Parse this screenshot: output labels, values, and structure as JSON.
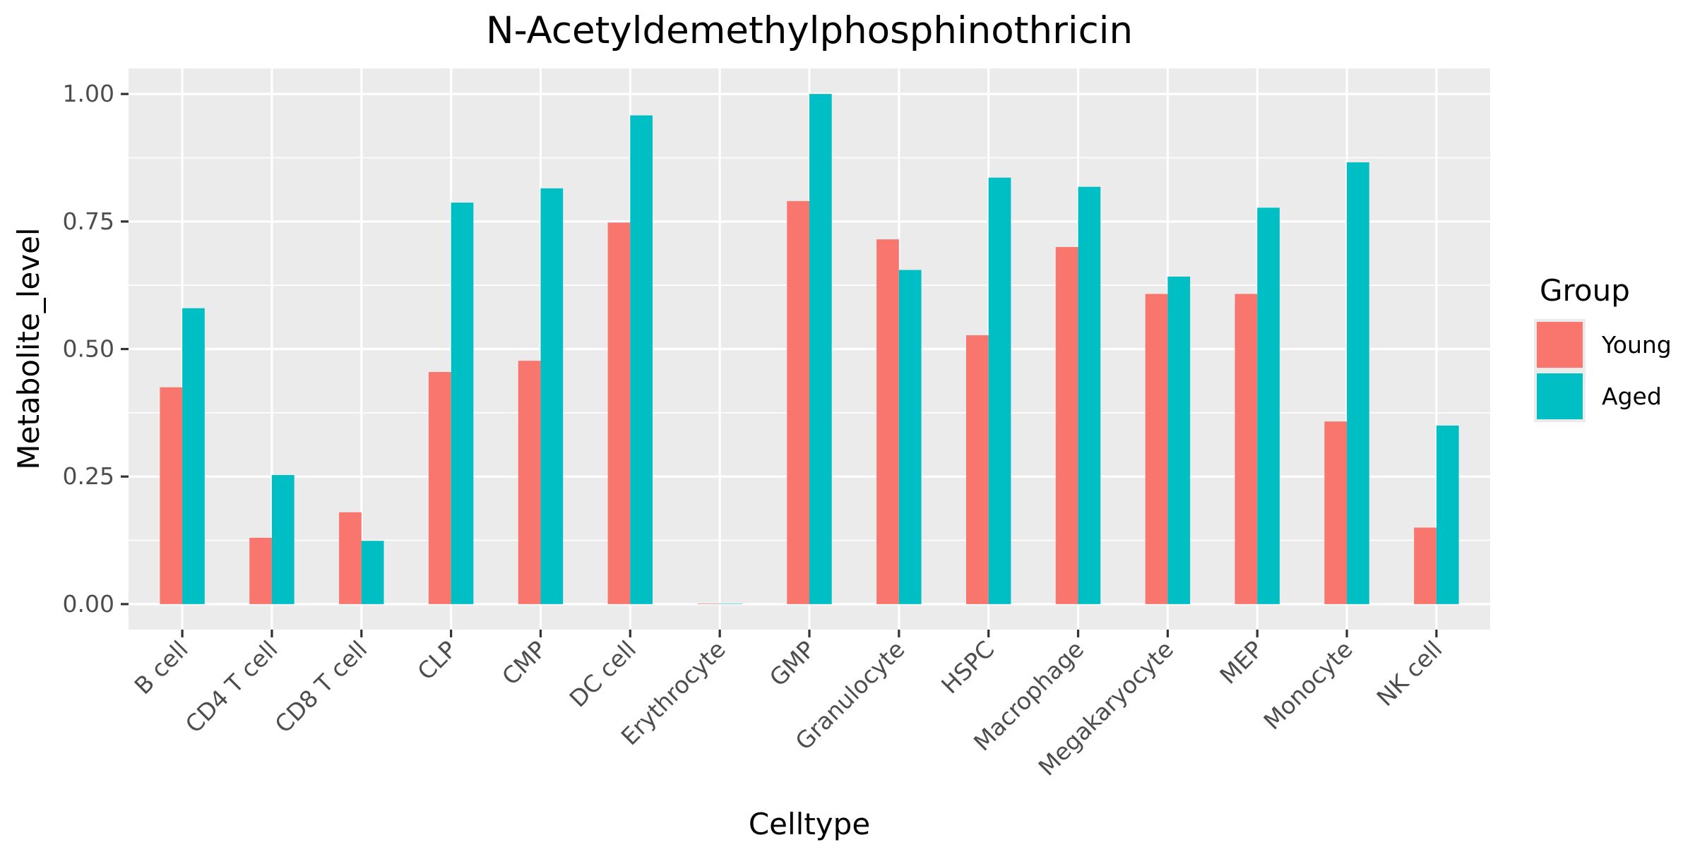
{
  "chart_data": {
    "type": "bar",
    "title": "N-Acetyldemethylphosphinothricin",
    "xlabel": "Celltype",
    "ylabel": "Metabolite_level",
    "categories": [
      "B cell",
      "CD4 T cell",
      "CD8 T cell",
      "CLP",
      "CMP",
      "DC cell",
      "Erythrocyte",
      "GMP",
      "Granulocyte",
      "HSPC",
      "Macrophage",
      "Megakaryocyte",
      "MEP",
      "Monocyte",
      "NK cell"
    ],
    "series": [
      {
        "name": "Young",
        "color": "#F8766D",
        "values": [
          0.425,
          0.13,
          0.18,
          0.455,
          0.477,
          0.748,
          0.001,
          0.79,
          0.715,
          0.527,
          0.7,
          0.608,
          0.608,
          0.358,
          0.15
        ]
      },
      {
        "name": "Aged",
        "color": "#00BFC4",
        "values": [
          0.58,
          0.253,
          0.124,
          0.787,
          0.815,
          0.958,
          0.0,
          1.0,
          0.655,
          0.836,
          0.818,
          0.642,
          0.777,
          0.866,
          0.35
        ]
      }
    ],
    "ylim": [
      -0.05,
      1.05
    ],
    "yticks": [
      0.0,
      0.25,
      0.5,
      0.75,
      1.0
    ],
    "ytick_labels": [
      "0.00",
      "0.25",
      "0.50",
      "0.75",
      "1.00"
    ],
    "grid": true,
    "legend": {
      "title": "Group",
      "position": "right"
    }
  }
}
